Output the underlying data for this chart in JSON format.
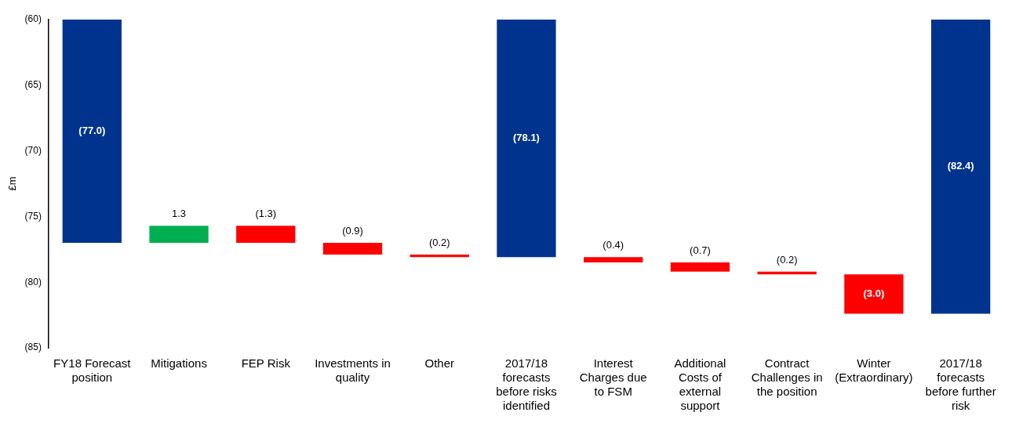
{
  "chart_data": {
    "type": "bar",
    "ylabel": "£m",
    "categories": [
      "FY18 Forecast position",
      "Mitigations",
      "FEP Risk",
      "Investments in quality",
      "Other",
      "2017/18 forecasts before risks identified",
      "Interest Charges due to FSM",
      "Additional Costs of external support",
      "Contract Challenges in the position",
      "Winter (Extraordinary)",
      "2017/18 forecasts before further risk"
    ],
    "base": [
      0,
      -77.0,
      -75.7,
      -77.0,
      -77.9,
      0,
      -78.1,
      -78.5,
      -79.2,
      -79.4,
      0
    ],
    "values": [
      -77.0,
      1.3,
      -1.3,
      -0.9,
      -0.2,
      -78.1,
      -0.4,
      -0.7,
      -0.2,
      -3.0,
      -82.4
    ],
    "colors": [
      "#00338d",
      "#00b050",
      "#ff0000",
      "#ff0000",
      "#ff0000",
      "#00338d",
      "#ff0000",
      "#ff0000",
      "#ff0000",
      "#ff0000",
      "#00338d"
    ],
    "value_labels": [
      "(77.0)",
      "1.3",
      "(1.3)",
      "(0.9)",
      "(0.2)",
      "(78.1)",
      "(0.4)",
      "(0.7)",
      "(0.2)",
      "(3.0)",
      "(82.4)"
    ],
    "ylim": [
      -85,
      -60
    ],
    "yticks": [
      {
        "value": -85,
        "label": "(85)"
      },
      {
        "value": -80,
        "label": "(80)"
      },
      {
        "value": -75,
        "label": "(75)"
      },
      {
        "value": -70,
        "label": "(70)"
      },
      {
        "value": -65,
        "label": "(65)"
      },
      {
        "value": -60,
        "label": "(60)"
      }
    ],
    "grid": false,
    "legend": false
  }
}
